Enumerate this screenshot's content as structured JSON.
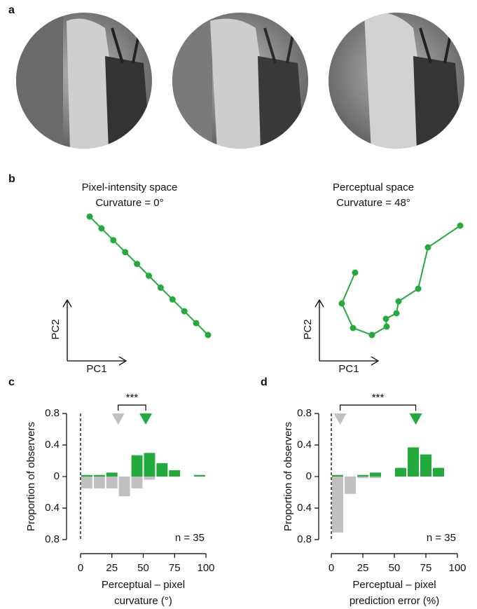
{
  "panel_labels": [
    "a",
    "b",
    "c",
    "d"
  ],
  "chart_data": [
    {
      "type": "line",
      "title": "Pixel-intensity space",
      "subtitle": "Curvature = 0°",
      "x": [
        0,
        1,
        2,
        3,
        4,
        5,
        6,
        7,
        8,
        9,
        10
      ],
      "series": [
        {
          "color": "#22aa3c",
          "values": [
            10,
            9,
            8,
            7,
            6,
            5,
            4,
            3,
            2,
            1,
            0
          ]
        }
      ],
      "xlim": [
        0,
        10
      ],
      "ylim": [
        0,
        10
      ],
      "xlabel": "PC1",
      "ylabel": "PC2"
    },
    {
      "type": "line",
      "title": "Perceptual space",
      "subtitle": "Curvature = 48°",
      "x": [
        27,
        8,
        24,
        51,
        72,
        71,
        86,
        89,
        117,
        131,
        177
      ],
      "series": [
        {
          "color": "#22aa3c",
          "values": [
            91,
            47,
            12,
            2,
            14,
            25,
            33,
            50,
            68,
            127,
            158
          ]
        }
      ],
      "xlim": [
        0,
        180
      ],
      "ylim": [
        0,
        160
      ],
      "xlabel": "PC1",
      "ylabel": "PC2"
    },
    {
      "type": "histogram",
      "bins": [
        0,
        10,
        20,
        30,
        40,
        50,
        60,
        70,
        80,
        90,
        100
      ],
      "series": [
        {
          "color": "#22aa3c",
          "values": [
            0.02,
            0.02,
            0.05,
            0,
            0.27,
            0.3,
            0.17,
            0.08,
            0,
            0.02
          ]
        },
        {
          "color": "#c0c0c0",
          "values": [
            -0.15,
            -0.15,
            -0.15,
            -0.25,
            -0.15,
            -0.04,
            0,
            0,
            0,
            0
          ]
        }
      ],
      "xlim": [
        0,
        100
      ],
      "xticks": [
        0,
        25,
        50,
        75,
        100
      ],
      "ylim": [
        -0.8,
        0.8
      ],
      "yticks": [
        {
          "value": -0.8,
          "label": "0.8"
        },
        {
          "value": -0.4,
          "label": "0.4"
        },
        0,
        0.4,
        0.8
      ],
      "xlabel": [
        "Perceptual – pixel",
        "curvature (°)"
      ],
      "ylabel": "Proportion of observers",
      "reference_x": 0,
      "means": [
        {
          "value": 30,
          "color": "#c0c0c0"
        },
        {
          "value": 52,
          "color": "#22aa3c"
        }
      ],
      "significance": "***",
      "annotation": "n = 35"
    },
    {
      "type": "histogram",
      "bins": [
        0,
        10,
        20,
        30,
        40,
        50,
        60,
        70,
        80,
        90,
        100
      ],
      "series": [
        {
          "color": "#22aa3c",
          "values": [
            0.02,
            0,
            0.02,
            0.05,
            0,
            0.11,
            0.37,
            0.28,
            0.11,
            0
          ]
        },
        {
          "color": "#c0c0c0",
          "values": [
            -0.71,
            -0.22,
            -0.02,
            -0.02,
            0,
            0,
            0,
            0,
            0,
            0
          ]
        }
      ],
      "xlim": [
        0,
        100
      ],
      "xticks": [
        0,
        25,
        50,
        75,
        100
      ],
      "ylim": [
        -0.8,
        0.8
      ],
      "yticks": [
        {
          "value": -0.8,
          "label": "0.8"
        },
        {
          "value": -0.4,
          "label": "0.4"
        },
        0,
        0.4,
        0.8
      ],
      "xlabel": [
        "Perceptual – pixel",
        "prediction error (%)"
      ],
      "ylabel": "Proportion of observers",
      "reference_x": 0,
      "means": [
        {
          "value": 7,
          "color": "#c0c0c0"
        },
        {
          "value": 67,
          "color": "#22aa3c"
        }
      ],
      "significance": "***",
      "annotation": "n = 35"
    }
  ]
}
